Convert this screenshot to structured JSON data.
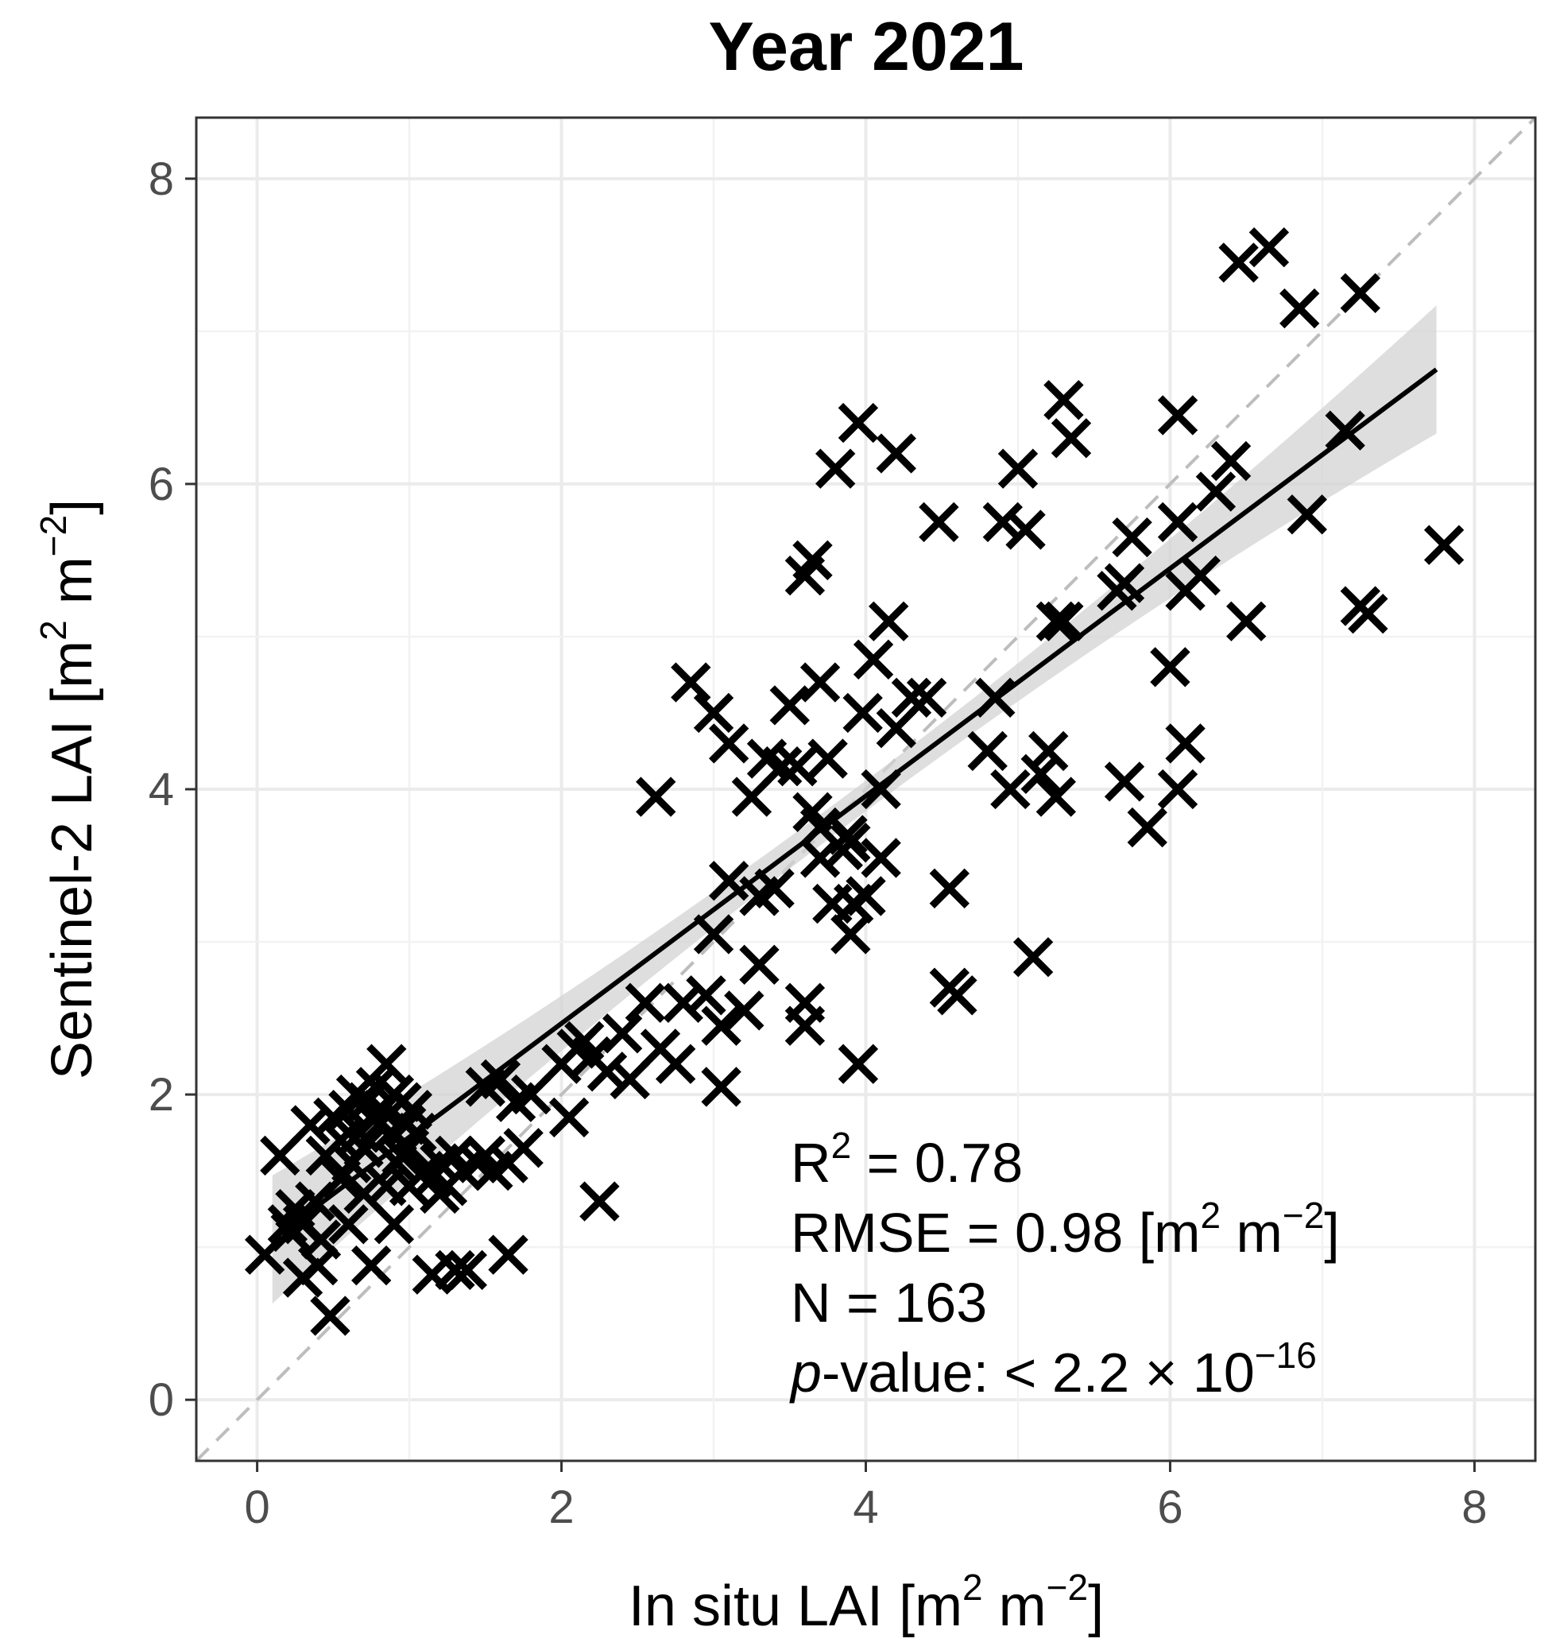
{
  "chart_data": {
    "type": "scatter",
    "title": "Year 2021",
    "xlabel": {
      "text": "In situ LAI [m",
      "sup1": "2",
      "mid": " m",
      "sup2": "−2",
      "end": "]"
    },
    "ylabel": {
      "text": "Sentinel-2 LAI [m",
      "sup1": "2",
      "mid": " m",
      "sup2": "−2",
      "end": "]"
    },
    "xlim": [
      -0.4,
      8.4
    ],
    "ylim": [
      -0.4,
      8.4
    ],
    "xticks": [
      0,
      2,
      4,
      6,
      8
    ],
    "yticks": [
      0,
      2,
      4,
      6,
      8
    ],
    "xtick_labels": [
      "0",
      "2",
      "4",
      "6",
      "8"
    ],
    "ytick_labels": [
      "0",
      "2",
      "4",
      "6",
      "8"
    ],
    "grid": true,
    "marker": "x",
    "reference_line": {
      "type": "1:1",
      "style": "dashed",
      "color": "#bdbdbd"
    },
    "fit_line": {
      "x": [
        0.1,
        7.75
      ],
      "y": [
        1.05,
        6.75
      ],
      "ci_color": "#d3d3d3"
    },
    "annotation": {
      "r2_label": "R",
      "r2_sup": "2",
      "r2_value": " = 0.78",
      "rmse_label": "RMSE = 0.98 [m",
      "rmse_sup1": "2",
      "rmse_mid": " m",
      "rmse_sup2": "−2",
      "rmse_end": "]",
      "n_label": "N = 163",
      "p_italic": "p",
      "p_text": "-value: < 2.2 × 10",
      "p_sup": "−16"
    },
    "points": [
      [
        0.05,
        0.95
      ],
      [
        0.15,
        1.6
      ],
      [
        0.2,
        1.15
      ],
      [
        0.25,
        1.25
      ],
      [
        0.3,
        0.8
      ],
      [
        0.35,
        1.8
      ],
      [
        0.4,
        0.88
      ],
      [
        0.45,
        1.6
      ],
      [
        0.5,
        1.85
      ],
      [
        0.48,
        0.55
      ],
      [
        0.55,
        1.7
      ],
      [
        0.6,
        1.9
      ],
      [
        0.62,
        1.55
      ],
      [
        0.65,
        2.0
      ],
      [
        0.68,
        1.75
      ],
      [
        0.7,
        1.65
      ],
      [
        0.72,
        1.95
      ],
      [
        0.75,
        1.85
      ],
      [
        0.78,
        2.05
      ],
      [
        0.8,
        1.8
      ],
      [
        0.82,
        1.9
      ],
      [
        0.85,
        2.2
      ],
      [
        0.88,
        1.75
      ],
      [
        0.9,
        2.0
      ],
      [
        0.92,
        1.55
      ],
      [
        0.95,
        1.95
      ],
      [
        0.98,
        1.8
      ],
      [
        1.0,
        1.65
      ],
      [
        1.02,
        1.9
      ],
      [
        0.75,
        0.88
      ],
      [
        0.85,
        1.4
      ],
      [
        0.95,
        1.6
      ],
      [
        1.05,
        1.75
      ],
      [
        1.1,
        1.5
      ],
      [
        1.15,
        1.45
      ],
      [
        1.2,
        1.55
      ],
      [
        1.25,
        1.4
      ],
      [
        1.3,
        1.6
      ],
      [
        1.15,
        0.82
      ],
      [
        1.3,
        0.85
      ],
      [
        1.38,
        0.85
      ],
      [
        1.35,
        1.5
      ],
      [
        1.45,
        1.55
      ],
      [
        1.5,
        2.05
      ],
      [
        1.55,
        1.5
      ],
      [
        1.6,
        2.1
      ],
      [
        1.65,
        0.95
      ],
      [
        1.65,
        1.55
      ],
      [
        1.7,
        1.95
      ],
      [
        1.75,
        1.65
      ],
      [
        1.8,
        2.0
      ],
      [
        2.0,
        2.2
      ],
      [
        2.05,
        1.85
      ],
      [
        2.1,
        2.3
      ],
      [
        2.2,
        2.25
      ],
      [
        2.25,
        1.3
      ],
      [
        2.3,
        2.15
      ],
      [
        2.4,
        2.4
      ],
      [
        2.55,
        2.6
      ],
      [
        2.65,
        2.3
      ],
      [
        2.62,
        3.95
      ],
      [
        2.75,
        2.2
      ],
      [
        2.85,
        4.7
      ],
      [
        3.0,
        4.5
      ],
      [
        3.0,
        3.05
      ],
      [
        3.05,
        2.05
      ],
      [
        3.05,
        2.45
      ],
      [
        3.1,
        4.3
      ],
      [
        3.1,
        3.4
      ],
      [
        3.2,
        2.55
      ],
      [
        3.25,
        3.95
      ],
      [
        3.3,
        2.85
      ],
      [
        3.35,
        4.2
      ],
      [
        3.45,
        4.15
      ],
      [
        3.5,
        4.55
      ],
      [
        3.55,
        4.15
      ],
      [
        3.6,
        2.6
      ],
      [
        3.6,
        2.45
      ],
      [
        3.6,
        5.4
      ],
      [
        3.65,
        5.5
      ],
      [
        3.7,
        4.7
      ],
      [
        3.65,
        3.85
      ],
      [
        3.7,
        3.55
      ],
      [
        3.75,
        4.2
      ],
      [
        3.78,
        3.25
      ],
      [
        3.8,
        6.1
      ],
      [
        3.85,
        3.6
      ],
      [
        3.88,
        3.7
      ],
      [
        3.9,
        3.05
      ],
      [
        3.92,
        3.25
      ],
      [
        3.95,
        6.4
      ],
      [
        3.95,
        2.2
      ],
      [
        3.98,
        4.5
      ],
      [
        4.0,
        3.3
      ],
      [
        4.05,
        4.85
      ],
      [
        4.1,
        3.55
      ],
      [
        4.15,
        5.1
      ],
      [
        4.2,
        6.2
      ],
      [
        4.3,
        4.6
      ],
      [
        4.48,
        5.75
      ],
      [
        4.55,
        3.35
      ],
      [
        4.55,
        2.7
      ],
      [
        4.6,
        2.65
      ],
      [
        4.8,
        4.25
      ],
      [
        4.9,
        5.75
      ],
      [
        4.95,
        4.0
      ],
      [
        5.0,
        6.1
      ],
      [
        5.05,
        5.7
      ],
      [
        5.1,
        2.9
      ],
      [
        5.15,
        4.1
      ],
      [
        5.2,
        4.25
      ],
      [
        5.25,
        3.95
      ],
      [
        5.3,
        6.55
      ],
      [
        5.35,
        6.3
      ],
      [
        5.25,
        5.1
      ],
      [
        5.7,
        4.05
      ],
      [
        5.75,
        5.65
      ],
      [
        5.85,
        3.75
      ],
      [
        6.0,
        4.8
      ],
      [
        6.05,
        4.0
      ],
      [
        6.05,
        6.45
      ],
      [
        6.1,
        4.3
      ],
      [
        6.05,
        5.75
      ],
      [
        6.1,
        5.3
      ],
      [
        6.4,
        6.15
      ],
      [
        6.45,
        7.45
      ],
      [
        6.5,
        5.1
      ],
      [
        6.65,
        7.55
      ],
      [
        6.85,
        7.15
      ],
      [
        6.9,
        5.8
      ],
      [
        7.25,
        7.25
      ],
      [
        7.25,
        5.2
      ],
      [
        7.3,
        5.15
      ],
      [
        7.8,
        5.6
      ],
      [
        0.3,
        1.15
      ],
      [
        0.55,
        1.45
      ],
      [
        0.7,
        1.35
      ],
      [
        1.0,
        1.4
      ],
      [
        0.42,
        1.05
      ],
      [
        0.22,
        1.1
      ],
      [
        1.5,
        1.6
      ],
      [
        2.15,
        2.35
      ],
      [
        2.45,
        2.1
      ],
      [
        3.3,
        3.3
      ],
      [
        3.7,
        3.75
      ],
      [
        3.9,
        3.65
      ],
      [
        4.1,
        4.0
      ],
      [
        4.2,
        4.4
      ],
      [
        4.85,
        4.6
      ],
      [
        5.3,
        5.1
      ],
      [
        5.7,
        5.35
      ],
      [
        6.2,
        5.4
      ],
      [
        7.15,
        6.35
      ],
      [
        0.6,
        1.15
      ],
      [
        0.38,
        1.3
      ],
      [
        0.9,
        1.15
      ],
      [
        1.2,
        1.35
      ],
      [
        2.8,
        2.6
      ],
      [
        4.4,
        4.6
      ],
      [
        5.65,
        5.3
      ],
      [
        6.3,
        5.95
      ],
      [
        3.4,
        3.35
      ],
      [
        2.95,
        2.65
      ]
    ]
  }
}
